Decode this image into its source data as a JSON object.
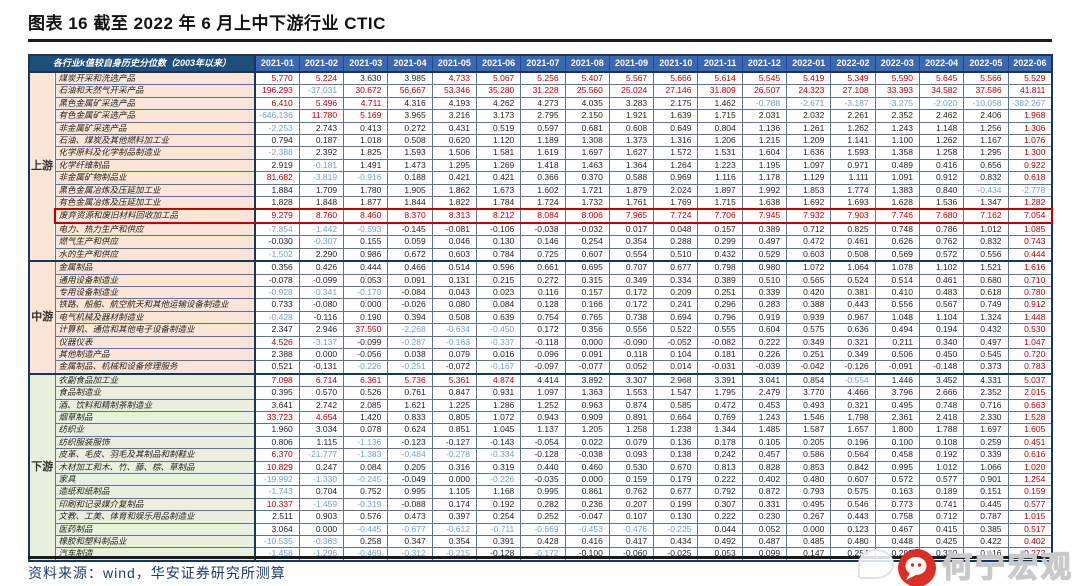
{
  "title": "图表 16  截至 2022 年 6 月上中下游行业 CTIC",
  "footer": {
    "source": "资料来源：wind，华安证券研究所测算"
  },
  "watermark": {
    "text": "何宁宏观",
    "logo": "chat-bubble-logo",
    "logo_color": "#d93025"
  },
  "colors": {
    "red_text": "#c00000",
    "blue_text": "#72a0d5",
    "black_text": "#1f1f1f",
    "header_bg": "#3b68b0",
    "corner_bg": "#1f4e79",
    "upstream_bg": "#fbe5d6",
    "midstream_bg": "#fbe5d6",
    "downstream_bg": "#e9efdc",
    "highlight_border": "#c00000"
  },
  "table": {
    "corner_header": "各行业k值较自身历史分位数（2003年以来）",
    "months": [
      "2021-01",
      "2021-02",
      "2021-03",
      "2021-04",
      "2021-05",
      "2021-06",
      "2021-07",
      "2021-08",
      "2021-09",
      "2021-10",
      "2021-11",
      "2021-12",
      "2022-01",
      "2022-02",
      "2022-03",
      "2022-04",
      "2022-05",
      "2022-06"
    ],
    "highlight_row": "废弃资源和废旧材料回收加工品",
    "groups": [
      {
        "name": "上游",
        "color": "#fbe5d6",
        "rows": [
          {
            "label": "煤炭开采和洗选产品",
            "values": [
              5.77,
              5.224,
              3.63,
              3.985,
              4.733,
              5.067,
              5.256,
              5.407,
              5.567,
              5.666,
              5.614,
              5.545,
              5.419,
              5.349,
              5.59,
              5.645,
              5.566,
              5.529
            ]
          },
          {
            "label": "石油和天然气开采产品",
            "values": [
              196.293,
              -37.031,
              30.672,
              56.667,
              53.346,
              35.28,
              31.228,
              25.56,
              25.024,
              27.146,
              31.809,
              26.507,
              24.323,
              27.108,
              33.393,
              34.582,
              37.586,
              41.811
            ]
          },
          {
            "label": "黑色金属矿采选产品",
            "values": [
              6.41,
              5.496,
              4.711,
              4.316,
              4.193,
              4.262,
              4.273,
              4.035,
              3.283,
              2.175,
              1.462,
              -0.788,
              -2.671,
              -3.187,
              -3.275,
              -2.02,
              -10.058,
              -382.267
            ]
          },
          {
            "label": "有色金属矿采选产品",
            "values": [
              -646.136,
              11.78,
              5.169,
              3.965,
              3.216,
              3.173,
              2.795,
              2.15,
              1.921,
              1.639,
              1.715,
              2.031,
              2.032,
              2.261,
              2.352,
              2.462,
              2.406,
              1.968
            ]
          },
          {
            "label": "非金属矿采选产品",
            "values": [
              -2.253,
              2.743,
              0.413,
              0.272,
              0.431,
              0.519,
              0.597,
              0.681,
              0.608,
              0.649,
              0.804,
              1.136,
              1.261,
              1.262,
              1.243,
              1.148,
              1.256,
              1.306
            ]
          },
          {
            "label": "石油、煤炭及其他燃料加工业",
            "values": [
              0.794,
              0.187,
              1.018,
              0.508,
              0.62,
              1.12,
              1.189,
              1.308,
              1.373,
              1.316,
              1.206,
              1.215,
              1.209,
              1.141,
              1.1,
              1.262,
              1.167,
              1.076
            ]
          },
          {
            "label": "化学原料及化学制品制造业",
            "values": [
              -2.388,
              2.392,
              1.825,
              1.593,
              1.506,
              1.581,
              1.619,
              1.697,
              1.627,
              1.572,
              1.531,
              1.604,
              1.636,
              1.593,
              1.358,
              1.258,
              1.295,
              1.3
            ]
          },
          {
            "label": "化学纤维制品",
            "values": [
              2.919,
              -0.181,
              1.491,
              1.473,
              1.295,
              1.269,
              1.418,
              1.463,
              1.364,
              1.264,
              1.223,
              1.195,
              1.097,
              0.971,
              0.489,
              0.416,
              0.656,
              0.922
            ]
          },
          {
            "label": "非金属矿物制品业",
            "values": [
              81.682,
              -3.819,
              -0.916,
              0.188,
              0.421,
              0.421,
              0.366,
              0.37,
              0.588,
              0.969,
              1.116,
              1.178,
              1.129,
              1.111,
              1.091,
              0.912,
              0.832,
              0.618
            ]
          },
          {
            "label": "黑色金属冶炼及压延加工业",
            "values": [
              1.884,
              1.709,
              1.78,
              1.905,
              1.862,
              1.673,
              1.602,
              1.721,
              1.879,
              2.024,
              1.897,
              1.992,
              1.853,
              1.774,
              1.383,
              0.84,
              -0.434,
              -2.778
            ]
          },
          {
            "label": "有色金属冶炼及压延加工业",
            "values": [
              1.828,
              1.848,
              1.877,
              1.844,
              1.822,
              1.784,
              1.724,
              1.732,
              1.761,
              1.769,
              1.715,
              1.638,
              1.692,
              1.693,
              1.628,
              1.536,
              1.347,
              1.282
            ]
          },
          {
            "label": "废弃资源和废旧材料回收加工品",
            "values": [
              9.279,
              8.76,
              8.46,
              8.37,
              8.313,
              8.212,
              8.084,
              8.006,
              7.965,
              7.724,
              7.706,
              7.945,
              7.932,
              7.903,
              7.746,
              7.68,
              7.162,
              7.054
            ]
          },
          {
            "label": "电力、热力生产和供应",
            "values": [
              -7.854,
              -1.442,
              -0.593,
              -0.145,
              -0.081,
              -0.106,
              -0.038,
              -0.032,
              0.017,
              0.048,
              0.157,
              0.389,
              0.712,
              0.825,
              0.748,
              0.786,
              1.012,
              1.085
            ]
          },
          {
            "label": "燃气生产和供应",
            "values": [
              -0.03,
              -0.307,
              0.155,
              0.059,
              0.046,
              0.13,
              0.146,
              0.254,
              0.354,
              0.288,
              0.299,
              0.497,
              0.472,
              0.461,
              0.626,
              0.762,
              0.832,
              0.743
            ]
          },
          {
            "label": "水的生产和供应",
            "values": [
              -1.502,
              2.29,
              0.986,
              0.672,
              0.603,
              0.784,
              0.725,
              0.607,
              0.554,
              0.51,
              0.432,
              0.529,
              0.603,
              0.508,
              0.569,
              0.572,
              0.556,
              0.444
            ]
          }
        ]
      },
      {
        "name": "中游",
        "color": "#fbe5d6",
        "rows": [
          {
            "label": "金属制品",
            "values": [
              0.356,
              0.426,
              0.444,
              0.466,
              0.514,
              0.596,
              0.661,
              0.695,
              0.707,
              0.677,
              0.798,
              0.98,
              1.072,
              1.064,
              1.078,
              1.102,
              1.521,
              1.616
            ]
          },
          {
            "label": "通用设备制造业",
            "values": [
              -0.078,
              -0.099,
              0.053,
              0.091,
              0.131,
              0.215,
              0.272,
              0.315,
              0.349,
              0.334,
              0.389,
              0.51,
              0.565,
              0.524,
              0.514,
              0.461,
              0.68,
              0.71
            ]
          },
          {
            "label": "专用设备制造业",
            "values": [
              -0.928,
              -0.341,
              -0.17,
              -0.084,
              0.043,
              0.023,
              0.116,
              0.157,
              0.172,
              0.209,
              0.251,
              0.339,
              0.42,
              0.381,
              0.41,
              0.483,
              0.618,
              0.78
            ]
          },
          {
            "label": "铁路、船舶、航空航天和其他运输设备制造业",
            "values": [
              0.733,
              -0.08,
              0.0,
              -0.026,
              0.08,
              0.084,
              0.128,
              0.166,
              0.172,
              0.241,
              0.296,
              0.283,
              0.388,
              0.443,
              0.556,
              0.567,
              0.749,
              0.912
            ]
          },
          {
            "label": "电气机械及器材制造业",
            "values": [
              -0.428,
              -0.116,
              0.19,
              0.394,
              0.508,
              0.639,
              0.754,
              0.765,
              0.738,
              0.694,
              0.796,
              0.919,
              0.939,
              0.967,
              1.048,
              1.104,
              1.324,
              1.448
            ]
          },
          {
            "label": "计算机、通信和其他电子设备制造业",
            "values": [
              2.347,
              2.946,
              37.55,
              -2.268,
              -0.634,
              -0.45,
              0.172,
              0.356,
              0.556,
              0.522,
              0.555,
              0.604,
              0.575,
              0.636,
              0.494,
              0.194,
              0.432,
              0.53
            ]
          },
          {
            "label": "仪器仪表",
            "values": [
              4.526,
              -3.137,
              -0.099,
              -0.287,
              -0.163,
              -0.337,
              -0.118,
              0.0,
              -0.09,
              -0.052,
              -0.082,
              0.222,
              0.349,
              0.321,
              0.211,
              0.34,
              0.497,
              1.047
            ]
          },
          {
            "label": "其他制造产品",
            "values": [
              2.388,
              0.0,
              -0.056,
              0.038,
              0.079,
              0.016,
              0.096,
              0.091,
              0.118,
              0.104,
              0.181,
              0.226,
              0.251,
              0.349,
              0.506,
              0.45,
              0.545,
              0.72
            ]
          },
          {
            "label": "金属制品、机械和设备修理服务",
            "values": [
              0.521,
              -0.131,
              -0.226,
              -0.251,
              -0.072,
              -0.167,
              -0.097,
              -0.077,
              0.052,
              0.014,
              -0.031,
              -0.039,
              -0.042,
              -0.126,
              -0.091,
              -0.148,
              0.373,
              0.783
            ]
          }
        ]
      },
      {
        "name": "下游",
        "color": "#e9efdc",
        "rows": [
          {
            "label": "农副食品加工业",
            "values": [
              7.098,
              6.714,
              6.361,
              5.736,
              5.361,
              4.874,
              4.414,
              3.892,
              3.307,
              2.968,
              3.391,
              3.041,
              0.854,
              -0.554,
              1.446,
              3.452,
              4.331,
              5.037
            ]
          },
          {
            "label": "食品制造业",
            "values": [
              0.395,
              0.57,
              0.526,
              0.761,
              0.847,
              0.931,
              1.097,
              1.363,
              1.553,
              1.547,
              1.795,
              2.479,
              3.77,
              4.466,
              3.796,
              2.666,
              2.352,
              2.015
            ]
          },
          {
            "label": "酒、饮料和精制茶制造业",
            "values": [
              3.641,
              2.742,
              2.085,
              1.621,
              1.225,
              1.286,
              1.252,
              0.963,
              0.874,
              0.585,
              0.472,
              0.453,
              0.493,
              0.321,
              0.495,
              0.748,
              0.716,
              0.663
            ]
          },
          {
            "label": "烟草制品",
            "values": [
              33.723,
              4.654,
              1.42,
              0.833,
              0.805,
              1.072,
              0.943,
              0.909,
              0.891,
              0.664,
              0.769,
              1.243,
              1.546,
              1.798,
              2.361,
              2.418,
              2.33,
              1.528
            ]
          },
          {
            "label": "纺织业",
            "values": [
              1.96,
              3.034,
              0.078,
              0.624,
              0.851,
              1.045,
              1.137,
              1.205,
              1.258,
              1.238,
              1.344,
              1.485,
              1.587,
              1.657,
              1.8,
              1.788,
              1.697,
              1.605
            ]
          },
          {
            "label": "纺织服装服饰",
            "values": [
              0.806,
              1.115,
              -1.136,
              -0.123,
              -0.127,
              -0.143,
              -0.054,
              0.022,
              0.079,
              0.136,
              0.178,
              0.105,
              0.205,
              0.196,
              0.1,
              0.108,
              0.259,
              0.451
            ]
          },
          {
            "label": "皮革、毛皮、羽毛及其制品和制鞋业",
            "values": [
              6.37,
              -21.777,
              -1.383,
              -0.484,
              -0.278,
              -0.334,
              -0.128,
              -0.038,
              0.093,
              0.138,
              0.242,
              0.457,
              0.586,
              0.564,
              0.458,
              0.192,
              0.339,
              0.616
            ]
          },
          {
            "label": "木材加工和木、竹、藤、棕、草制品",
            "values": [
              10.829,
              0.247,
              0.084,
              0.205,
              0.316,
              0.319,
              0.44,
              0.46,
              0.53,
              0.67,
              0.813,
              0.828,
              0.853,
              0.842,
              0.995,
              1.012,
              1.066,
              1.02
            ]
          },
          {
            "label": "家具",
            "values": [
              -19.992,
              -1.33,
              -0.245,
              -0.049,
              0.0,
              -0.226,
              -0.035,
              0.0,
              0.159,
              0.179,
              0.222,
              0.402,
              0.48,
              0.607,
              0.572,
              0.577,
              0.901,
              1.254
            ]
          },
          {
            "label": "造纸和纸制品",
            "values": [
              -1.743,
              0.704,
              0.752,
              0.995,
              1.105,
              1.168,
              0.995,
              0.861,
              0.762,
              0.677,
              0.792,
              0.872,
              0.793,
              0.575,
              0.163,
              0.189,
              0.151,
              0.159
            ]
          },
          {
            "label": "印刷和记录媒介复制品",
            "values": [
              10.337,
              -1.459,
              -0.319,
              -0.088,
              0.174,
              0.192,
              0.282,
              0.236,
              0.207,
              0.199,
              0.307,
              0.331,
              0.495,
              0.546,
              0.773,
              0.741,
              0.445,
              0.577
            ]
          },
          {
            "label": "文教、工美、体育和娱乐用品制造业",
            "values": [
              2.511,
              0.903,
              0.576,
              0.473,
              0.397,
              0.254,
              0.252,
              -0.047,
              0.107,
              0.13,
              0.222,
              0.23,
              0.267,
              0.443,
              0.758,
              0.712,
              0.787,
              1.015
            ]
          },
          {
            "label": "医药制品",
            "values": [
              3.064,
              0.0,
              -0.445,
              -0.677,
              -0.612,
              -0.711,
              -0.669,
              -0.453,
              -0.476,
              -0.225,
              0.044,
              0.052,
              0.0,
              0.123,
              0.467,
              0.415,
              0.385,
              0.517
            ]
          },
          {
            "label": "橡胶和塑料制品业",
            "values": [
              -10.535,
              -0.363,
              0.258,
              0.347,
              0.354,
              0.391,
              0.428,
              0.416,
              0.417,
              0.434,
              0.492,
              0.487,
              0.485,
              0.48,
              0.448,
              0.425,
              0.422,
              0.402
            ]
          },
          {
            "label": "汽车制造",
            "values": [
              -1.458,
              -1.296,
              -0.469,
              -0.312,
              -0.215,
              -0.128,
              -0.172,
              -0.1,
              -0.06,
              -0.025,
              0.053,
              0.099,
              0.147,
              0.254,
              0.295,
              0.33,
              0.416,
              0.273
            ]
          }
        ]
      }
    ]
  }
}
